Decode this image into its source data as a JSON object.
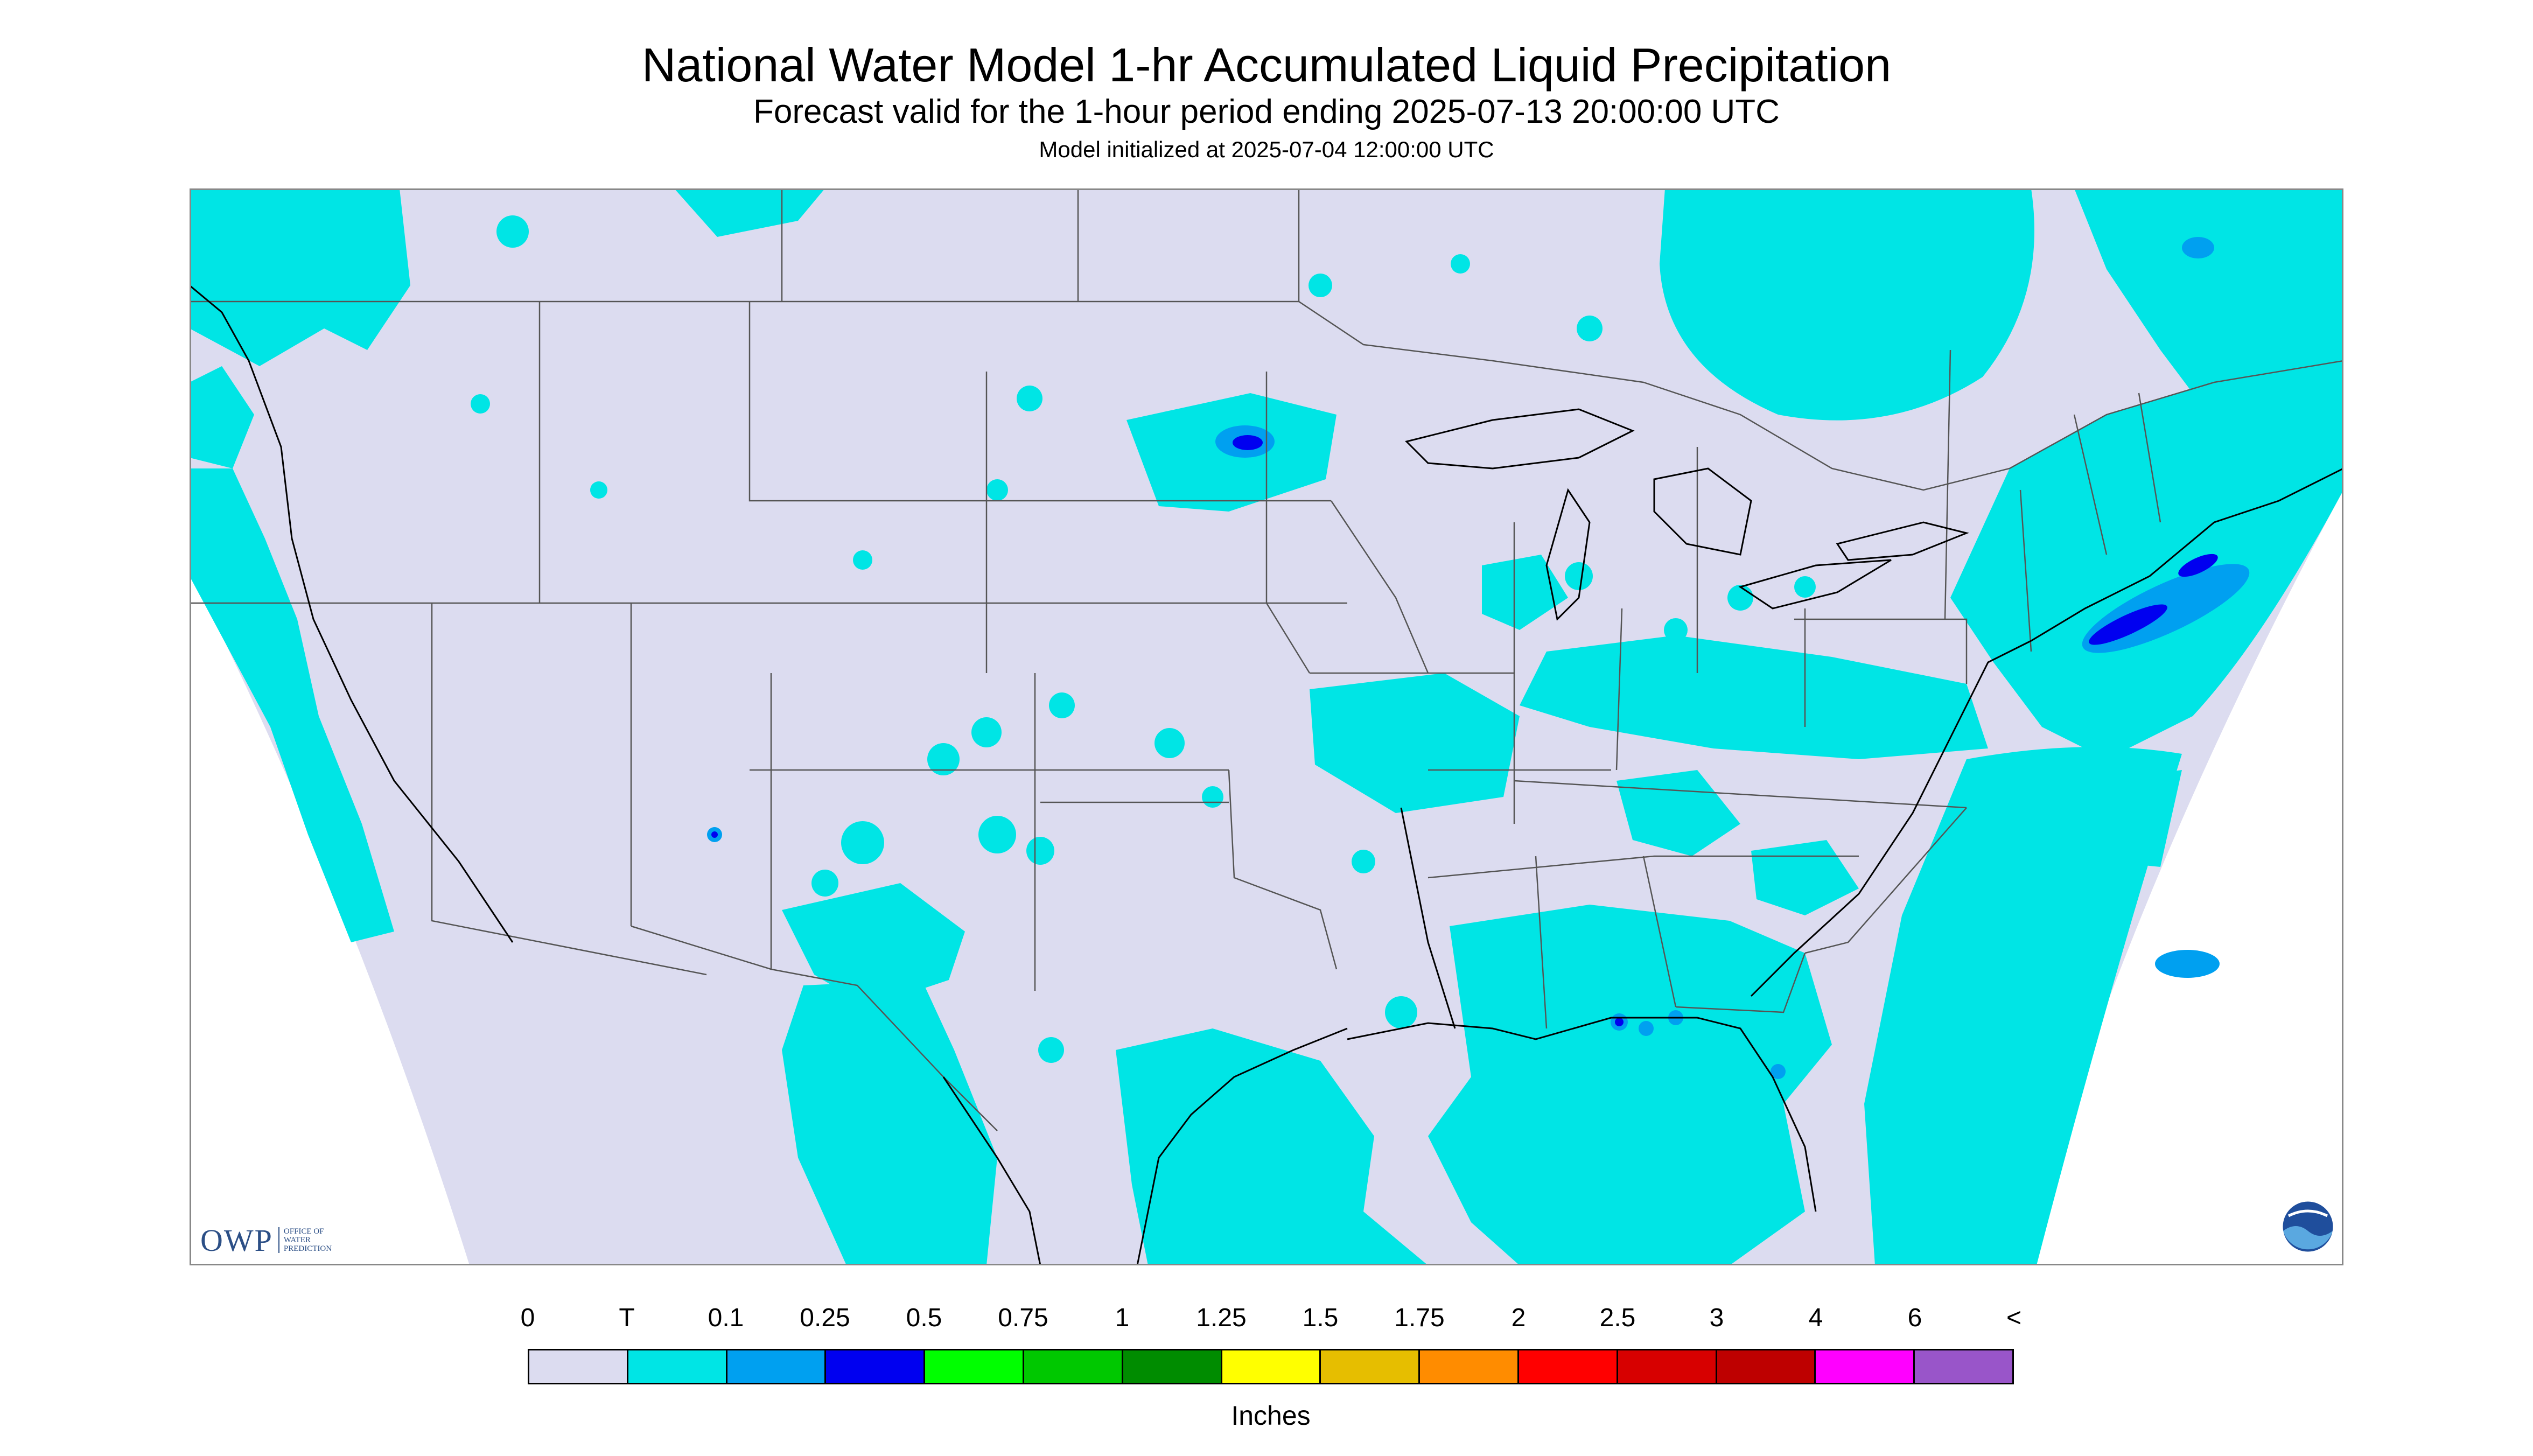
{
  "title": "National Water Model 1-hr Accumulated Liquid Precipitation",
  "subtitle": "Forecast valid for the 1-hour period ending 2025-07-13 20:00:00 UTC",
  "init_text": "Model initialized at 2025-07-04 12:00:00 UTC",
  "logos": {
    "owp": "OWP",
    "owp_sub_1": "Office of",
    "owp_sub_2": "Water",
    "owp_sub_3": "Prediction",
    "noaa": "NOAA"
  },
  "legend": {
    "units": "Inches",
    "labels": [
      "0",
      "T",
      "0.1",
      "0.25",
      "0.5",
      "0.75",
      "1",
      "1.25",
      "1.5",
      "1.75",
      "2",
      "2.5",
      "3",
      "4",
      "6",
      "<"
    ],
    "colors": [
      "#dcdcf0",
      "#00e5e5",
      "#00a0f0",
      "#0000f0",
      "#00ff00",
      "#00c800",
      "#008c00",
      "#ffff00",
      "#e6be00",
      "#ff8c00",
      "#ff0000",
      "#d70000",
      "#be0000",
      "#ff00ff",
      "#9955c9"
    ]
  },
  "colors": {
    "no_data": "#ffffff",
    "zero": "#dcdcf0",
    "trace": "#00e5e5",
    "light": "#00a0f0",
    "moderate": "#0000f0",
    "boundary": "#555555"
  }
}
